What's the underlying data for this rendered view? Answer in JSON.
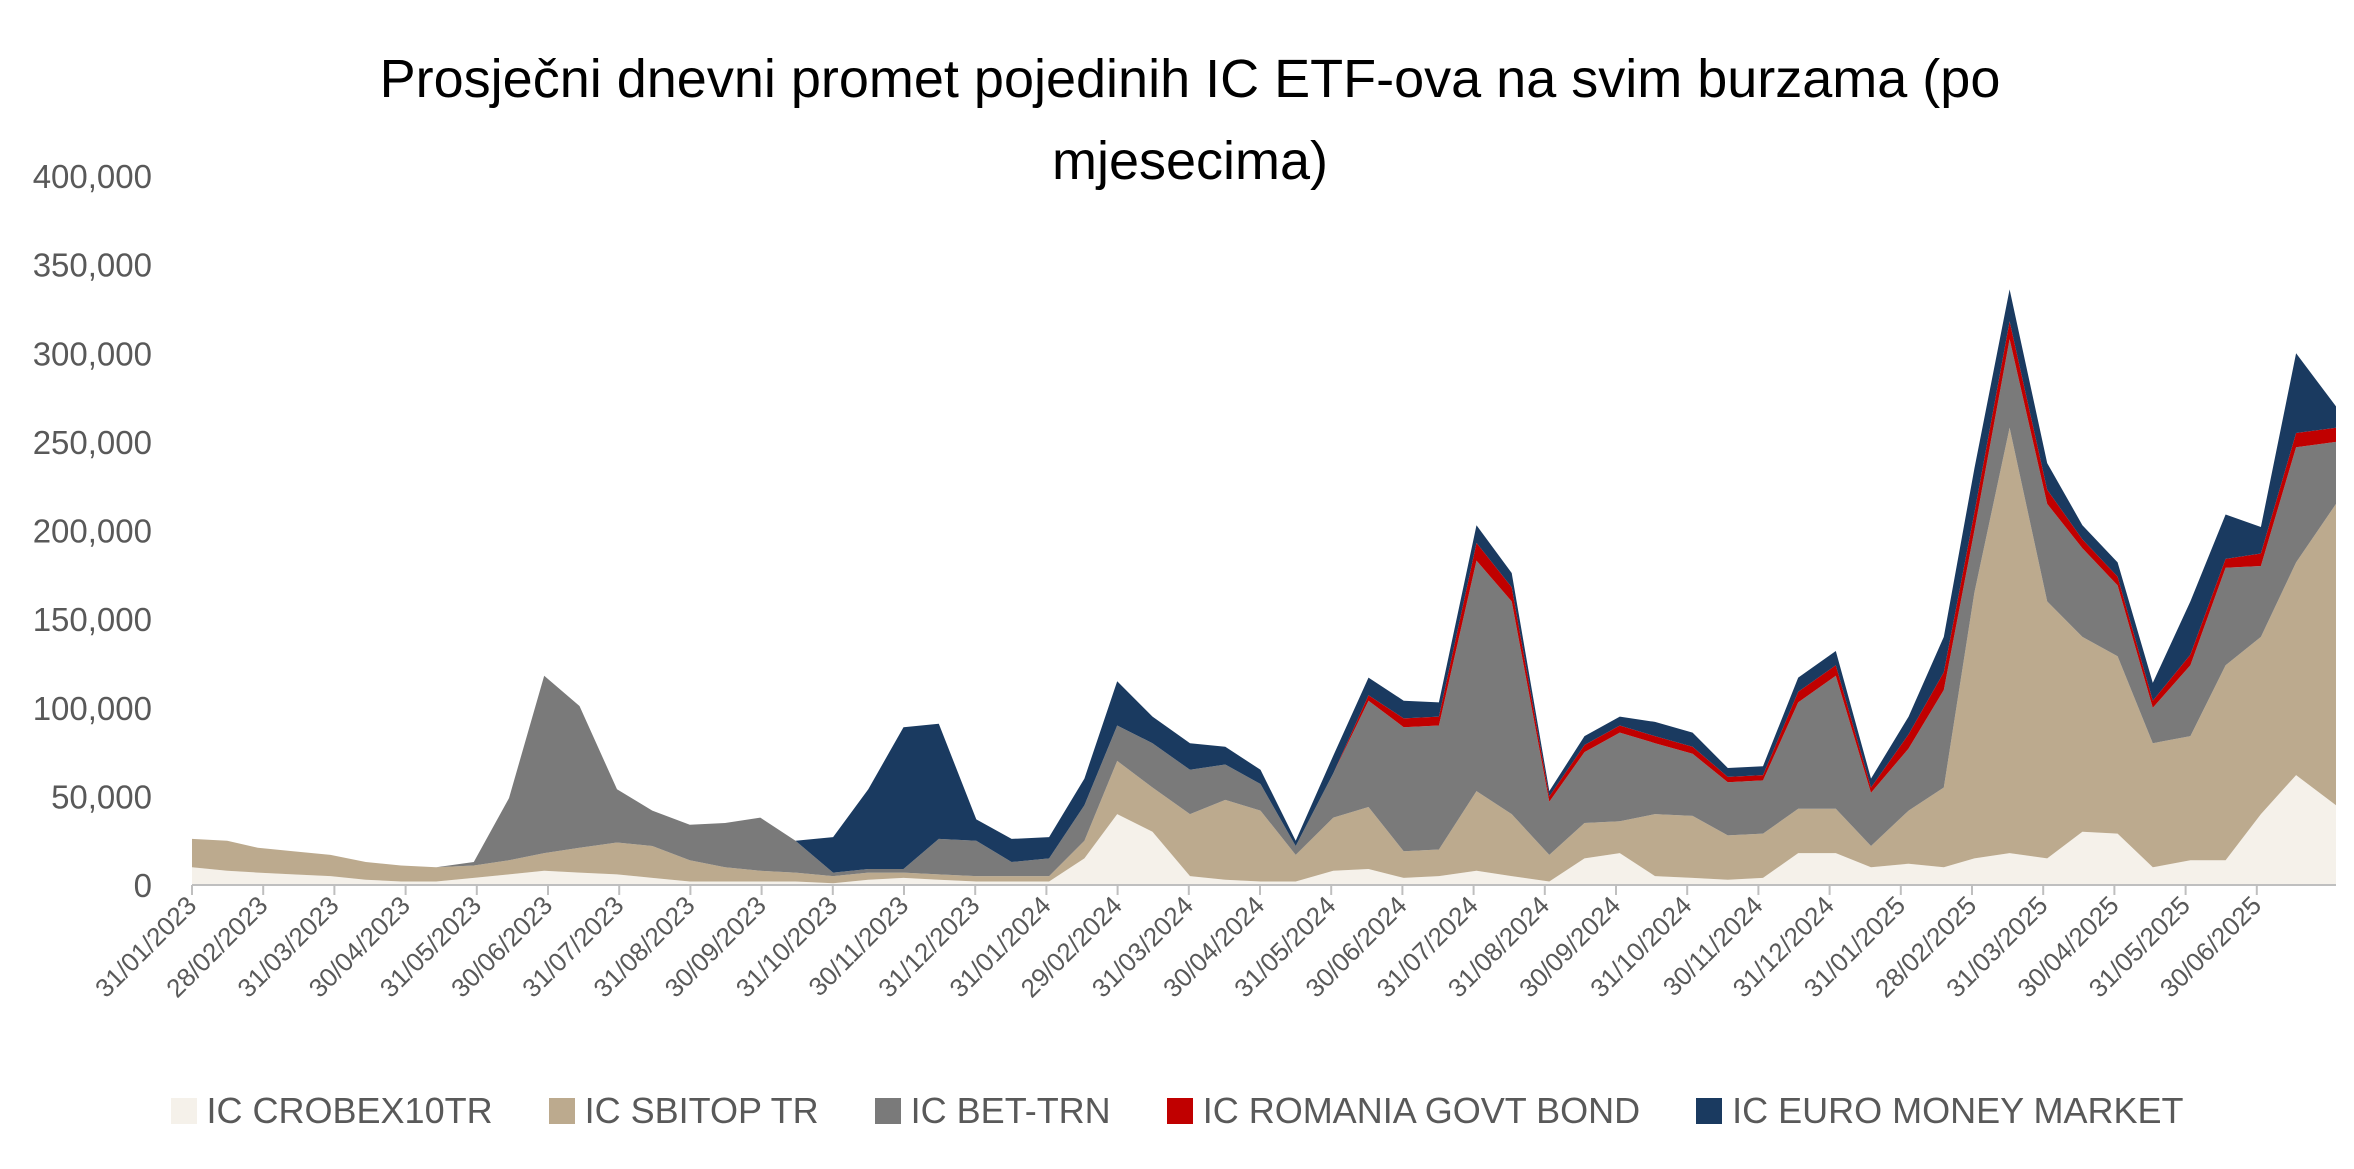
{
  "chart_data": {
    "type": "area",
    "stacked": true,
    "title": "Prosječni dnevni promet pojedinih IC ETF-ova na svim burzama (po mjesecima)",
    "title_lines": [
      "Prosječni dnevni promet pojedinih IC ETF-ova na svim burzama (po",
      "mjesecima)"
    ],
    "ylim": [
      0,
      400000
    ],
    "yticks": [
      0,
      50000,
      100000,
      150000,
      200000,
      250000,
      300000,
      350000,
      400000
    ],
    "ytick_labels": [
      "0",
      "50,000",
      "100,000",
      "150,000",
      "200,000",
      "250,000",
      "300,000",
      "350,000",
      "400,000"
    ],
    "xlim": [
      "2023-01-31",
      "2025-08-01"
    ],
    "xtick_labels": [
      "31/01/2023",
      "28/02/2023",
      "31/03/2023",
      "30/04/2023",
      "31/05/2023",
      "30/06/2023",
      "31/07/2023",
      "31/08/2023",
      "30/09/2023",
      "31/10/2023",
      "30/11/2023",
      "31/12/2023",
      "31/01/2024",
      "29/02/2024",
      "31/03/2024",
      "30/04/2024",
      "31/05/2024",
      "30/06/2024",
      "31/07/2024",
      "31/08/2024",
      "30/09/2024",
      "31/10/2024",
      "30/11/2024",
      "31/12/2024",
      "31/01/2025",
      "28/02/2025",
      "31/03/2025",
      "30/04/2025",
      "31/05/2025",
      "30/06/2025"
    ],
    "legend_position": "bottom",
    "grid": false,
    "x": [
      "2023-01-31",
      "2023-02-15",
      "2023-02-28",
      "2023-03-15",
      "2023-03-31",
      "2023-04-15",
      "2023-04-30",
      "2023-05-15",
      "2023-05-31",
      "2023-06-15",
      "2023-06-30",
      "2023-07-15",
      "2023-07-31",
      "2023-08-15",
      "2023-08-31",
      "2023-09-15",
      "2023-09-30",
      "2023-10-15",
      "2023-10-31",
      "2023-11-15",
      "2023-11-30",
      "2023-12-15",
      "2023-12-31",
      "2024-01-15",
      "2024-01-31",
      "2024-02-15",
      "2024-02-29",
      "2024-03-15",
      "2024-03-31",
      "2024-04-15",
      "2024-04-30",
      "2024-05-15",
      "2024-05-31",
      "2024-06-15",
      "2024-06-30",
      "2024-07-15",
      "2024-07-31",
      "2024-08-15",
      "2024-08-31",
      "2024-09-15",
      "2024-09-30",
      "2024-10-15",
      "2024-10-31",
      "2024-11-15",
      "2024-11-30",
      "2024-12-15",
      "2024-12-31",
      "2025-01-15",
      "2025-01-31",
      "2025-02-15",
      "2025-02-28",
      "2025-03-15",
      "2025-03-31",
      "2025-04-15",
      "2025-04-30",
      "2025-05-15",
      "2025-05-31",
      "2025-06-15",
      "2025-06-30",
      "2025-07-15",
      "2025-08-01"
    ],
    "series": [
      {
        "name": "IC CROBEX10TR",
        "color": "#F5F1EA",
        "values": [
          10000,
          8000,
          7000,
          6000,
          5000,
          3000,
          2000,
          2000,
          4000,
          6000,
          8000,
          7000,
          6000,
          4000,
          2000,
          2000,
          2000,
          2000,
          1000,
          3000,
          4000,
          3000,
          2000,
          2000,
          2000,
          15000,
          40000,
          30000,
          5000,
          3000,
          2000,
          2000,
          8000,
          9000,
          4000,
          5000,
          8000,
          5000,
          2000,
          15000,
          18000,
          5000,
          4000,
          3000,
          4000,
          18000,
          18000,
          10000,
          12000,
          10000,
          15000,
          18000,
          15000,
          30000,
          29000,
          10000,
          14000,
          14000,
          40000,
          62000,
          45000
        ]
      },
      {
        "name": "IC SBITOP TR",
        "color": "#BCAA8E",
        "values": [
          16000,
          17000,
          14000,
          13000,
          12000,
          10000,
          9000,
          8000,
          7000,
          8000,
          10000,
          14000,
          18000,
          18000,
          12000,
          8000,
          6000,
          5000,
          4000,
          4000,
          3000,
          3000,
          3000,
          3000,
          3000,
          10000,
          30000,
          25000,
          35000,
          45000,
          40000,
          15000,
          30000,
          35000,
          15000,
          15000,
          45000,
          35000,
          15000,
          20000,
          18000,
          35000,
          35000,
          25000,
          25000,
          25000,
          25000,
          12000,
          30000,
          45000,
          150000,
          240000,
          145000,
          110000,
          100000,
          70000,
          70000,
          110000,
          100000,
          120000,
          170000
        ]
      },
      {
        "name": "IC BET-TRN",
        "color": "#7A7A7A",
        "values": [
          0,
          0,
          0,
          0,
          0,
          0,
          0,
          0,
          2000,
          35000,
          100000,
          80000,
          30000,
          20000,
          20000,
          25000,
          30000,
          18000,
          2000,
          2000,
          2000,
          20000,
          20000,
          8000,
          10000,
          20000,
          20000,
          25000,
          25000,
          20000,
          15000,
          5000,
          25000,
          60000,
          70000,
          70000,
          130000,
          120000,
          30000,
          40000,
          50000,
          40000,
          35000,
          30000,
          30000,
          60000,
          75000,
          30000,
          35000,
          55000,
          35000,
          50000,
          55000,
          50000,
          40000,
          20000,
          40000,
          55000,
          40000,
          65000,
          35000
        ]
      },
      {
        "name": "IC ROMANIA GOVT BOND",
        "color": "#C00000",
        "values": [
          0,
          0,
          0,
          0,
          0,
          0,
          0,
          0,
          0,
          0,
          0,
          0,
          0,
          0,
          0,
          0,
          0,
          0,
          0,
          0,
          0,
          0,
          0,
          0,
          0,
          0,
          0,
          0,
          0,
          0,
          0,
          0,
          0,
          3000,
          5000,
          5000,
          10000,
          8000,
          3000,
          4000,
          4000,
          4000,
          4000,
          3000,
          3000,
          6000,
          6000,
          3000,
          8000,
          10000,
          10000,
          10000,
          8000,
          5000,
          5000,
          4000,
          6000,
          5000,
          7000,
          8000,
          8000
        ]
      },
      {
        "name": "IC EURO MONEY MARKET",
        "color": "#1A3A60",
        "values": [
          0,
          0,
          0,
          0,
          0,
          0,
          0,
          0,
          0,
          0,
          0,
          0,
          0,
          0,
          0,
          0,
          0,
          0,
          20000,
          45000,
          80000,
          65000,
          12000,
          13000,
          12000,
          15000,
          25000,
          15000,
          15000,
          10000,
          8000,
          3000,
          10000,
          10000,
          10000,
          8000,
          10000,
          8000,
          3000,
          5000,
          5000,
          8000,
          8000,
          5000,
          5000,
          8000,
          8000,
          5000,
          10000,
          20000,
          25000,
          18000,
          15000,
          8000,
          8000,
          10000,
          30000,
          25000,
          15000,
          45000,
          12000
        ]
      }
    ]
  }
}
